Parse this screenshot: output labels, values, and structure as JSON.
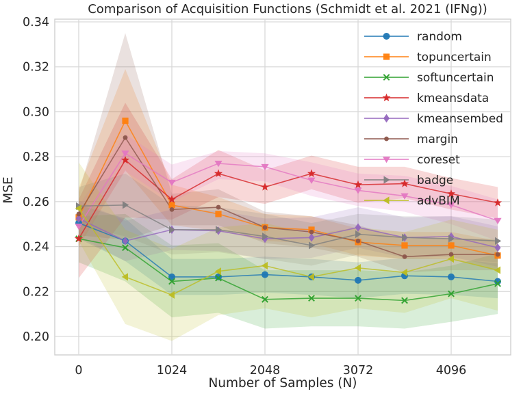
{
  "title": "Comparison of Acquisition Functions (Schmidt et al. 2021 (IFNg))",
  "chart_data": {
    "type": "line",
    "title": "Comparison of Acquisition Functions (Schmidt et al. 2021 (IFNg))",
    "xlabel": "Number of Samples (N)",
    "ylabel": "MSE",
    "grid": true,
    "legend_position": "upper right",
    "xlim": [
      -263,
      4751
    ],
    "ylim": [
      0.192,
      0.3412
    ],
    "xticks": [
      0,
      1024,
      2048,
      3072,
      4096
    ],
    "yticks": [
      0.2,
      0.22,
      0.24,
      0.26,
      0.28,
      0.3,
      0.32,
      0.34
    ],
    "x": [
      0,
      512,
      1024,
      1536,
      2048,
      2560,
      3072,
      3584,
      4096,
      4608
    ],
    "series": [
      {
        "name": "random",
        "color": "#1f77b4",
        "marker": "circle",
        "values": [
          0.2505,
          0.2425,
          0.2265,
          0.2265,
          0.2275,
          0.2265,
          0.225,
          0.227,
          0.2265,
          0.2245
        ],
        "band_lower": [
          0.2435,
          0.2335,
          0.2185,
          0.2185,
          0.2195,
          0.2185,
          0.217,
          0.219,
          0.2185,
          0.217
        ],
        "band_upper": [
          0.2585,
          0.2525,
          0.2345,
          0.2345,
          0.2355,
          0.2345,
          0.233,
          0.235,
          0.2345,
          0.2325
        ]
      },
      {
        "name": "topuncertain",
        "color": "#ff7f0e",
        "marker": "square",
        "values": [
          0.253,
          0.296,
          0.2585,
          0.2545,
          0.2485,
          0.2475,
          0.242,
          0.2405,
          0.2405,
          0.236
        ],
        "band_lower": [
          0.24,
          0.274,
          0.2495,
          0.247,
          0.2425,
          0.2415,
          0.236,
          0.2345,
          0.2345,
          0.2295
        ],
        "band_upper": [
          0.266,
          0.319,
          0.2675,
          0.262,
          0.2545,
          0.2535,
          0.248,
          0.2465,
          0.2465,
          0.2425
        ]
      },
      {
        "name": "softuncertain",
        "color": "#2ca02c",
        "marker": "x",
        "values": [
          0.2435,
          0.2395,
          0.2245,
          0.226,
          0.2165,
          0.217,
          0.217,
          0.216,
          0.219,
          0.2235
        ],
        "band_lower": [
          0.233,
          0.2245,
          0.2085,
          0.2105,
          0.2035,
          0.2045,
          0.2045,
          0.2035,
          0.2065,
          0.21
        ],
        "band_upper": [
          0.2535,
          0.2545,
          0.2405,
          0.2415,
          0.2295,
          0.2295,
          0.2295,
          0.2285,
          0.2315,
          0.237
        ]
      },
      {
        "name": "kmeansdata",
        "color": "#d62728",
        "marker": "star",
        "values": [
          0.2435,
          0.2785,
          0.261,
          0.2725,
          0.2665,
          0.2725,
          0.2675,
          0.268,
          0.2635,
          0.2595
        ],
        "band_lower": [
          0.226,
          0.253,
          0.252,
          0.262,
          0.259,
          0.2655,
          0.2595,
          0.2615,
          0.2565,
          0.2525
        ],
        "band_upper": [
          0.261,
          0.304,
          0.27,
          0.283,
          0.274,
          0.2805,
          0.2755,
          0.2755,
          0.2705,
          0.2665
        ]
      },
      {
        "name": "kmeansembed",
        "color": "#9467bd",
        "marker": "diamond",
        "values": [
          0.2525,
          0.2425,
          0.2475,
          0.247,
          0.2435,
          0.244,
          0.2485,
          0.244,
          0.2445,
          0.2395
        ],
        "band_lower": [
          0.2445,
          0.2335,
          0.2385,
          0.238,
          0.2345,
          0.235,
          0.2395,
          0.235,
          0.2355,
          0.231
        ],
        "band_upper": [
          0.2605,
          0.2515,
          0.2565,
          0.256,
          0.2525,
          0.253,
          0.2575,
          0.253,
          0.2535,
          0.249
        ]
      },
      {
        "name": "margin",
        "color": "#8c564b",
        "marker": "dot",
        "values": [
          0.2545,
          0.2885,
          0.2565,
          0.2575,
          0.2485,
          0.2465,
          0.2425,
          0.2355,
          0.2365,
          0.2365
        ],
        "band_lower": [
          0.245,
          0.243,
          0.2495,
          0.2495,
          0.2415,
          0.2395,
          0.2355,
          0.2285,
          0.2295,
          0.2295
        ],
        "band_upper": [
          0.264,
          0.335,
          0.2635,
          0.2655,
          0.2555,
          0.2535,
          0.2495,
          0.2435,
          0.2435,
          0.2435
        ]
      },
      {
        "name": "coreset",
        "color": "#e377c2",
        "marker": "triangle-down",
        "values": [
          0.249,
          0.2815,
          0.2685,
          0.277,
          0.2755,
          0.2695,
          0.265,
          0.2625,
          0.2585,
          0.2515
        ],
        "band_lower": [
          0.2415,
          0.2735,
          0.26,
          0.27,
          0.269,
          0.2625,
          0.258,
          0.2555,
          0.25,
          0.2425
        ],
        "band_upper": [
          0.258,
          0.29,
          0.2765,
          0.2825,
          0.2815,
          0.2775,
          0.2725,
          0.2715,
          0.267,
          0.261
        ]
      },
      {
        "name": "badge",
        "color": "#7f7f7f",
        "marker": "triangle-right",
        "values": [
          0.258,
          0.2585,
          0.2475,
          0.2475,
          0.2445,
          0.2405,
          0.2455,
          0.244,
          0.2435,
          0.2425
        ],
        "band_lower": [
          0.2495,
          0.2445,
          0.2365,
          0.2375,
          0.2345,
          0.2315,
          0.2365,
          0.2345,
          0.2345,
          0.233
        ],
        "band_upper": [
          0.2665,
          0.2725,
          0.2585,
          0.2575,
          0.2545,
          0.2505,
          0.2545,
          0.2535,
          0.2535,
          0.252
        ]
      },
      {
        "name": "advBIM",
        "color": "#bcbd22",
        "marker": "triangle-left",
        "values": [
          0.257,
          0.2265,
          0.2185,
          0.229,
          0.2315,
          0.2265,
          0.2305,
          0.2285,
          0.2345,
          0.2295
        ],
        "band_lower": [
          0.2425,
          0.2055,
          0.198,
          0.2095,
          0.2125,
          0.2085,
          0.2125,
          0.2105,
          0.217,
          0.2115
        ],
        "band_upper": [
          0.2775,
          0.2475,
          0.239,
          0.2485,
          0.2505,
          0.2455,
          0.2485,
          0.2465,
          0.252,
          0.2475
        ]
      }
    ]
  }
}
